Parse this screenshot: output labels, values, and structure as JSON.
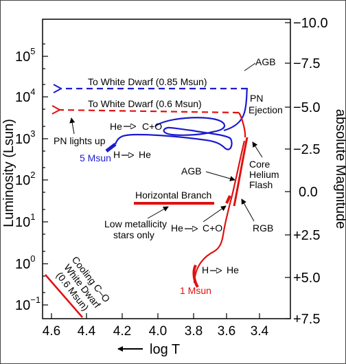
{
  "chart_data": {
    "type": "hr_diagram",
    "xlabel": "log T",
    "ylabel_left": "Luminosity (Lsun)",
    "ylabel_right": "absolute Magnitude",
    "x_ticks": [
      "4.6",
      "4.4",
      "4.2",
      "4.0",
      "3.8",
      "3.6",
      "3.4"
    ],
    "y_ticks_left": [
      {
        "base": "10",
        "exp": "5"
      },
      {
        "base": "10",
        "exp": "4"
      },
      {
        "base": "10",
        "exp": "3"
      },
      {
        "base": "10",
        "exp": "2"
      },
      {
        "base": "10",
        "exp": "1"
      },
      {
        "base": "10",
        "exp": "0"
      },
      {
        "base": "10",
        "exp": "−1"
      }
    ],
    "y_ticks_right": [
      "−10.0",
      "−7.5",
      "−5.0",
      "−2.5",
      "0.0",
      "+2.5",
      "+5.0",
      "+7.5"
    ],
    "colors": {
      "low_mass": "#e01010",
      "high_mass": "#1a1ad0",
      "ink": "#000000"
    },
    "tracks": [
      {
        "label": "1 Msun",
        "color": "red"
      },
      {
        "label": "5 Msun",
        "color": "blue"
      }
    ],
    "annotations": {
      "agb_top": "AGB",
      "to_wd_085": "To White Dwarf (0.85 Msun)",
      "to_wd_06": "To White Dwarf (0.6 Msun)",
      "pn_ejection_1": "PN",
      "pn_ejection_2": "Ejection",
      "he_co_top": "He",
      "he_co_top_right": "C+O",
      "pn_lights_up": "PN lights up",
      "five_msun": "5 Msun",
      "h_he_blue_left": "H",
      "h_he_blue_right": "He",
      "core_1": "Core",
      "core_2": "Helium",
      "core_3": "Flash",
      "agb_mid": "AGB",
      "horizontal_branch": "Horizontal Branch",
      "low_met_1": "Low metallicity",
      "low_met_2": "stars only",
      "he_co_bottom_left": "He",
      "he_co_bottom_right": "C+O",
      "rgb": "RGB",
      "h_he_red_left": "H",
      "h_he_red_right": "He",
      "one_msun": "1 Msun",
      "cooling_1": "Cooling C–O",
      "cooling_2": "White Dwarf",
      "cooling_3": "(0.6 Msun)"
    }
  }
}
